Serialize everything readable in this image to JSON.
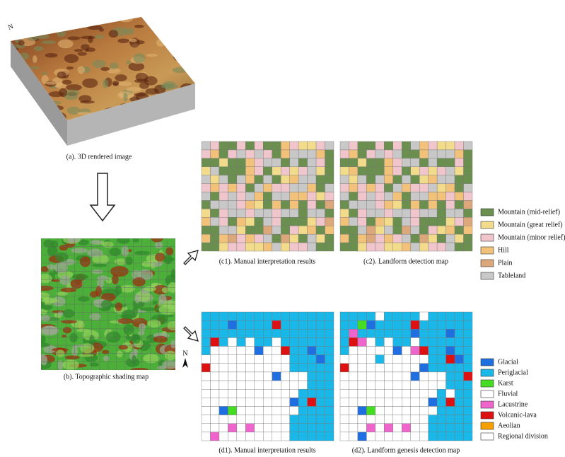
{
  "figure": {
    "north_label": "N",
    "captions": {
      "a": "(a). 3D rendered image",
      "b": "(b). Topographic shading map",
      "c1": "(c1). Manual interpretation results",
      "c2": "(c2). Landform detection map",
      "d1": "(d1). Manual interpretation results",
      "d2": "(d2). Landform genesis detection map"
    },
    "legend_relief": [
      {
        "label": "Mountain (mid-relief)",
        "color": "#6b8f4e"
      },
      {
        "label": "Mountain (great relief)",
        "color": "#f2dc8c"
      },
      {
        "label": "Mountain (minor relief)",
        "color": "#f0c6cc"
      },
      {
        "label": "Hill",
        "color": "#f2c27a"
      },
      {
        "label": "Plain",
        "color": "#dca77a"
      },
      {
        "label": "Tableland",
        "color": "#c8c8c8"
      }
    ],
    "legend_genesis": [
      {
        "label": "Glacial",
        "color": "#1f6fe0"
      },
      {
        "label": "Periglacial",
        "color": "#1ab8e8"
      },
      {
        "label": "Karst",
        "color": "#44dd22"
      },
      {
        "label": "Fluvial",
        "color": "#ffffff"
      },
      {
        "label": "Lacustrine",
        "color": "#ee66cc"
      },
      {
        "label": "Volcanic-lava",
        "color": "#dd1111"
      },
      {
        "label": "Aeolian",
        "color": "#f5a000"
      },
      {
        "label": "Regional division",
        "color": "#ffffff"
      }
    ]
  }
}
